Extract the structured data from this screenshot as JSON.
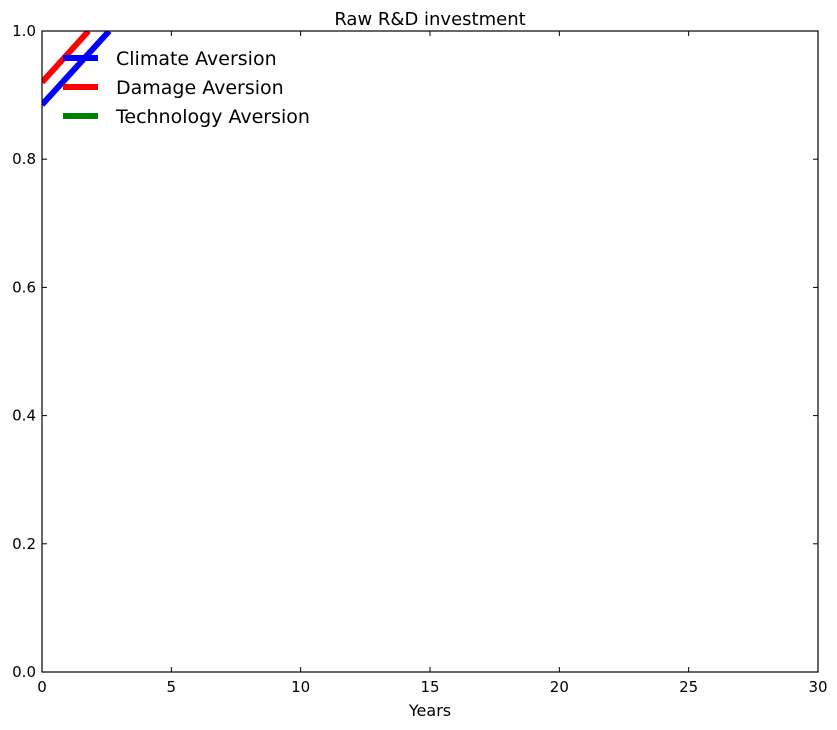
{
  "chart_data": {
    "type": "line",
    "title": "Raw R&D investment",
    "xlabel": "Years",
    "ylabel": "",
    "xlim": [
      0,
      30
    ],
    "ylim": [
      0.0,
      1.0
    ],
    "x_ticks": [
      0,
      5,
      10,
      15,
      20,
      25,
      30
    ],
    "x_tick_labels": [
      "0",
      "5",
      "10",
      "15",
      "20",
      "25",
      "30"
    ],
    "y_ticks": [
      0.0,
      0.2,
      0.4,
      0.6,
      0.8,
      1.0
    ],
    "y_tick_labels": [
      "0.0",
      "0.2",
      "0.4",
      "0.6",
      "0.8",
      "1.0"
    ],
    "grid": false,
    "legend_placement": "upper-left",
    "series": [
      {
        "name": "Climate Aversion",
        "color": "#0000ff",
        "x": [
          0,
          2.6
        ],
        "y": [
          0.885,
          1.0
        ]
      },
      {
        "name": "Damage Aversion",
        "color": "#ff0000",
        "x": [
          0,
          1.8
        ],
        "y": [
          0.92,
          1.0
        ]
      },
      {
        "name": "Technology Aversion",
        "color": "#008000",
        "x": [],
        "y": []
      }
    ]
  }
}
